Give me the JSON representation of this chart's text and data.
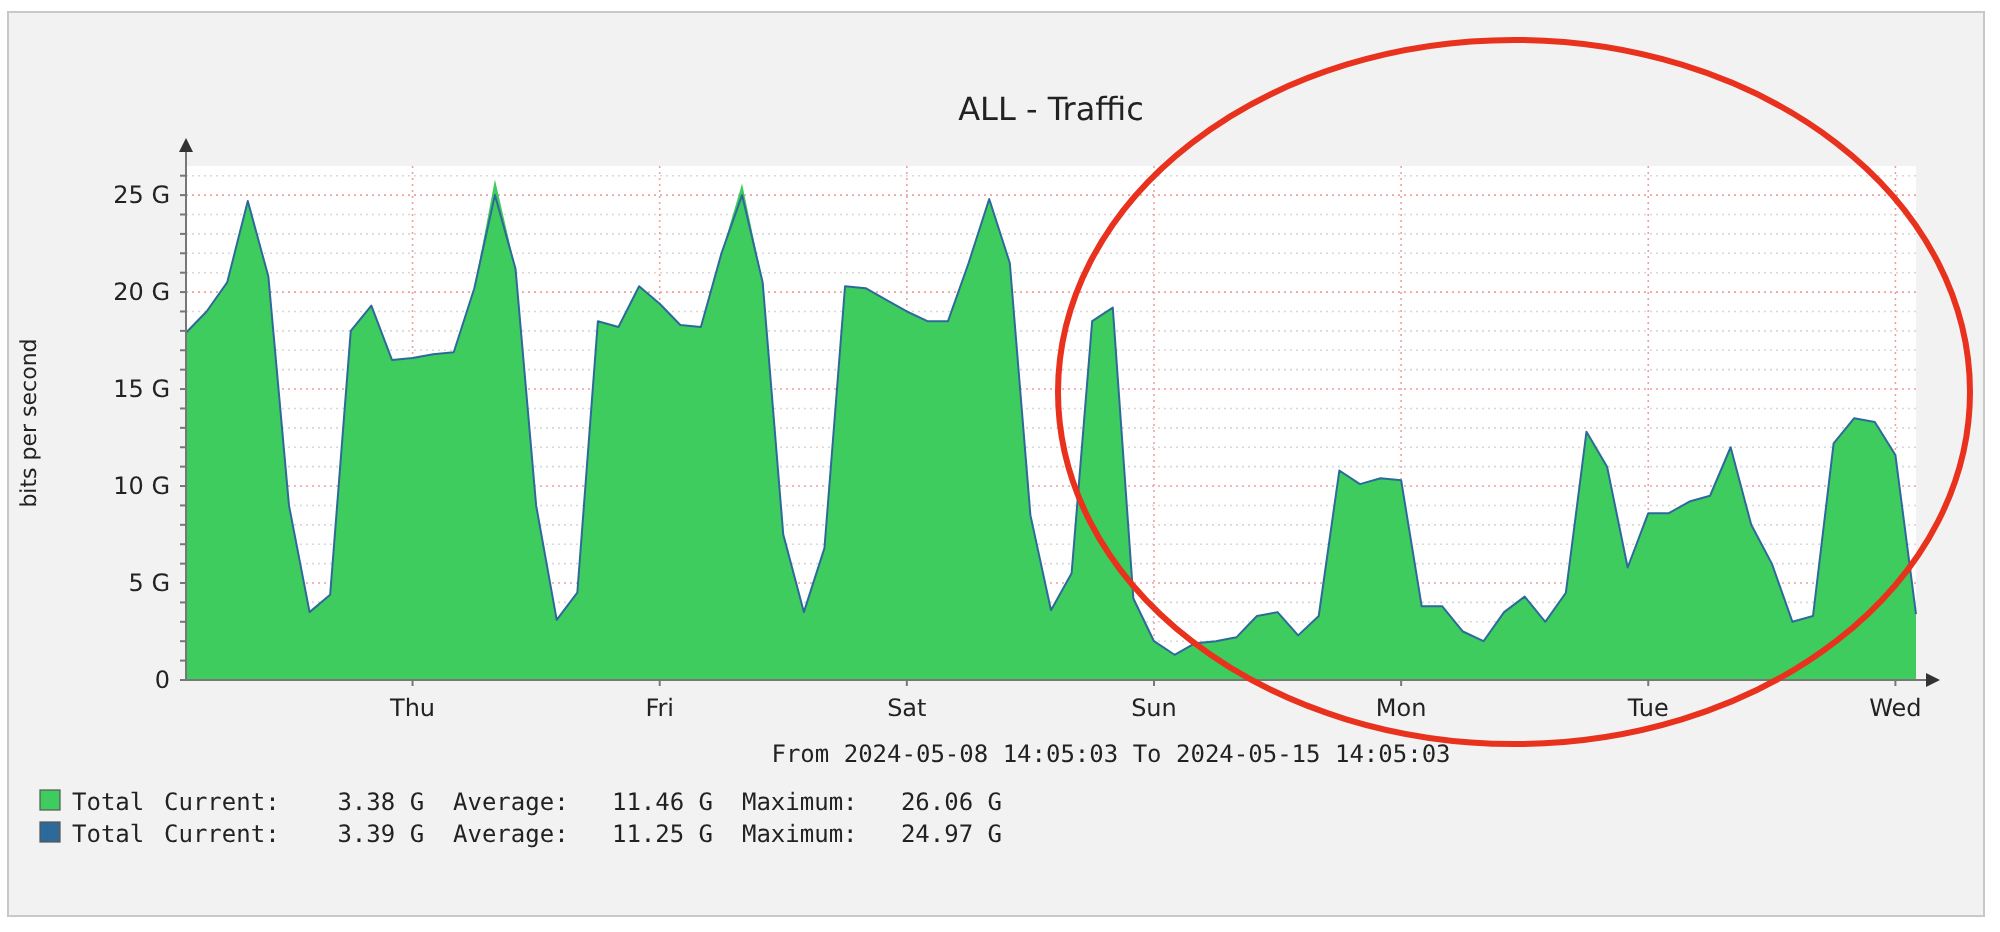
{
  "chart_data": {
    "type": "area",
    "title": "ALL - Traffic",
    "ylabel": "bits per second",
    "xlabel": "From 2024-05-08 14:05:03 To 2024-05-15 14:05:03",
    "categories": [
      null,
      null,
      null,
      null,
      null,
      null,
      null,
      null,
      null,
      null,
      null,
      "Thu",
      null,
      null,
      null,
      null,
      null,
      null,
      null,
      null,
      null,
      null,
      null,
      "Fri",
      null,
      null,
      null,
      null,
      null,
      null,
      null,
      null,
      null,
      null,
      null,
      "Sat",
      null,
      null,
      null,
      null,
      null,
      null,
      null,
      null,
      null,
      null,
      null,
      "Sun",
      null,
      null,
      null,
      null,
      null,
      null,
      null,
      null,
      null,
      null,
      null,
      "Mon",
      null,
      null,
      null,
      null,
      null,
      null,
      null,
      null,
      null,
      null,
      null,
      "Tue",
      null,
      null,
      null,
      null,
      null,
      null,
      null,
      null,
      null,
      null,
      null,
      "Wed",
      null
    ],
    "series": [
      {
        "name": "Total",
        "color": "#3fcc5f",
        "values": [
          17.9,
          19.0,
          20.5,
          24.7,
          20.8,
          9,
          3.5,
          4.4,
          18,
          19.3,
          16.5,
          16.6,
          16.8,
          16.9,
          20.2,
          25.8,
          21.2,
          9,
          3.1,
          4.5,
          18.5,
          18.2,
          20.3,
          19.4,
          18.3,
          18.2,
          22.0,
          25.6,
          20.5,
          7.5,
          3.5,
          6.8,
          20.3,
          20.2,
          19.6,
          19.0,
          18.5,
          18.5,
          21.5,
          24.8,
          21.5,
          8.5,
          3.6,
          5.5,
          18.5,
          19.2,
          4.2,
          2.0,
          1.3,
          1.9,
          2.0,
          2.2,
          3.3,
          3.5,
          2.3,
          3.3,
          10.8,
          10.1,
          10.4,
          10.3,
          3.8,
          3.8,
          2.5,
          2.0,
          3.5,
          4.3,
          3.0,
          4.5,
          12.8,
          11,
          5.8,
          8.6,
          8.6,
          9.2,
          9.5,
          12.0,
          8.0,
          6.0,
          3.0,
          3.3,
          12.2,
          13.5,
          13.3,
          11.6,
          3.4
        ]
      },
      {
        "name": "Total",
        "type": "line",
        "color": "#2d6a9a",
        "values": [
          17.9,
          19.0,
          20.5,
          24.7,
          20.8,
          9,
          3.5,
          4.4,
          18,
          19.3,
          16.5,
          16.6,
          16.8,
          16.9,
          20.2,
          25.0,
          21.2,
          9,
          3.1,
          4.5,
          18.5,
          18.2,
          20.3,
          19.4,
          18.3,
          18.2,
          22.0,
          25.0,
          20.5,
          7.5,
          3.5,
          6.8,
          20.3,
          20.2,
          19.6,
          19.0,
          18.5,
          18.5,
          21.5,
          24.8,
          21.5,
          8.5,
          3.6,
          5.5,
          18.5,
          19.2,
          4.2,
          2.0,
          1.3,
          1.9,
          2.0,
          2.2,
          3.3,
          3.5,
          2.3,
          3.3,
          10.8,
          10.1,
          10.4,
          10.3,
          3.8,
          3.8,
          2.5,
          2.0,
          3.5,
          4.3,
          3.0,
          4.5,
          12.8,
          11,
          5.8,
          8.6,
          8.6,
          9.2,
          9.5,
          12.0,
          8.0,
          6.0,
          3.0,
          3.3,
          12.2,
          13.5,
          13.3,
          11.6,
          3.4
        ]
      }
    ],
    "ylim": [
      0,
      26.5
    ],
    "yticks": [
      0,
      {
        "value": 1,
        "label": null
      },
      {
        "value": 2,
        "label": null
      },
      {
        "value": 3,
        "label": null
      },
      {
        "value": 4,
        "label": null
      },
      {
        "value": 5,
        "label": "5 G"
      },
      {
        "value": 6,
        "label": null
      },
      {
        "value": 7,
        "label": null
      },
      {
        "value": 8,
        "label": null
      },
      {
        "value": 9,
        "label": null
      },
      {
        "value": 10,
        "label": "10 G"
      },
      {
        "value": 11,
        "label": null
      },
      {
        "value": 12,
        "label": null
      },
      {
        "value": 13,
        "label": null
      },
      {
        "value": 14,
        "label": null
      },
      {
        "value": 15,
        "label": "15 G"
      },
      {
        "value": 16,
        "label": null
      },
      {
        "value": 17,
        "label": null
      },
      {
        "value": 18,
        "label": null
      },
      {
        "value": 19,
        "label": null
      },
      {
        "value": 20,
        "label": "20 G"
      },
      {
        "value": 21,
        "label": null
      },
      {
        "value": 22,
        "label": null
      },
      {
        "value": 23,
        "label": null
      },
      {
        "value": 24,
        "label": null
      },
      {
        "value": 25,
        "label": "25 G"
      },
      {
        "value": 26,
        "label": null
      }
    ],
    "grid": true,
    "legend": "bottom",
    "annotations": [
      "Current:    3.38 G  Average:   11.46 G  Maximum:   26.06 G",
      "Current:    3.39 G  Average:   11.25 G  Maximum:   24.97 G"
    ]
  }
}
